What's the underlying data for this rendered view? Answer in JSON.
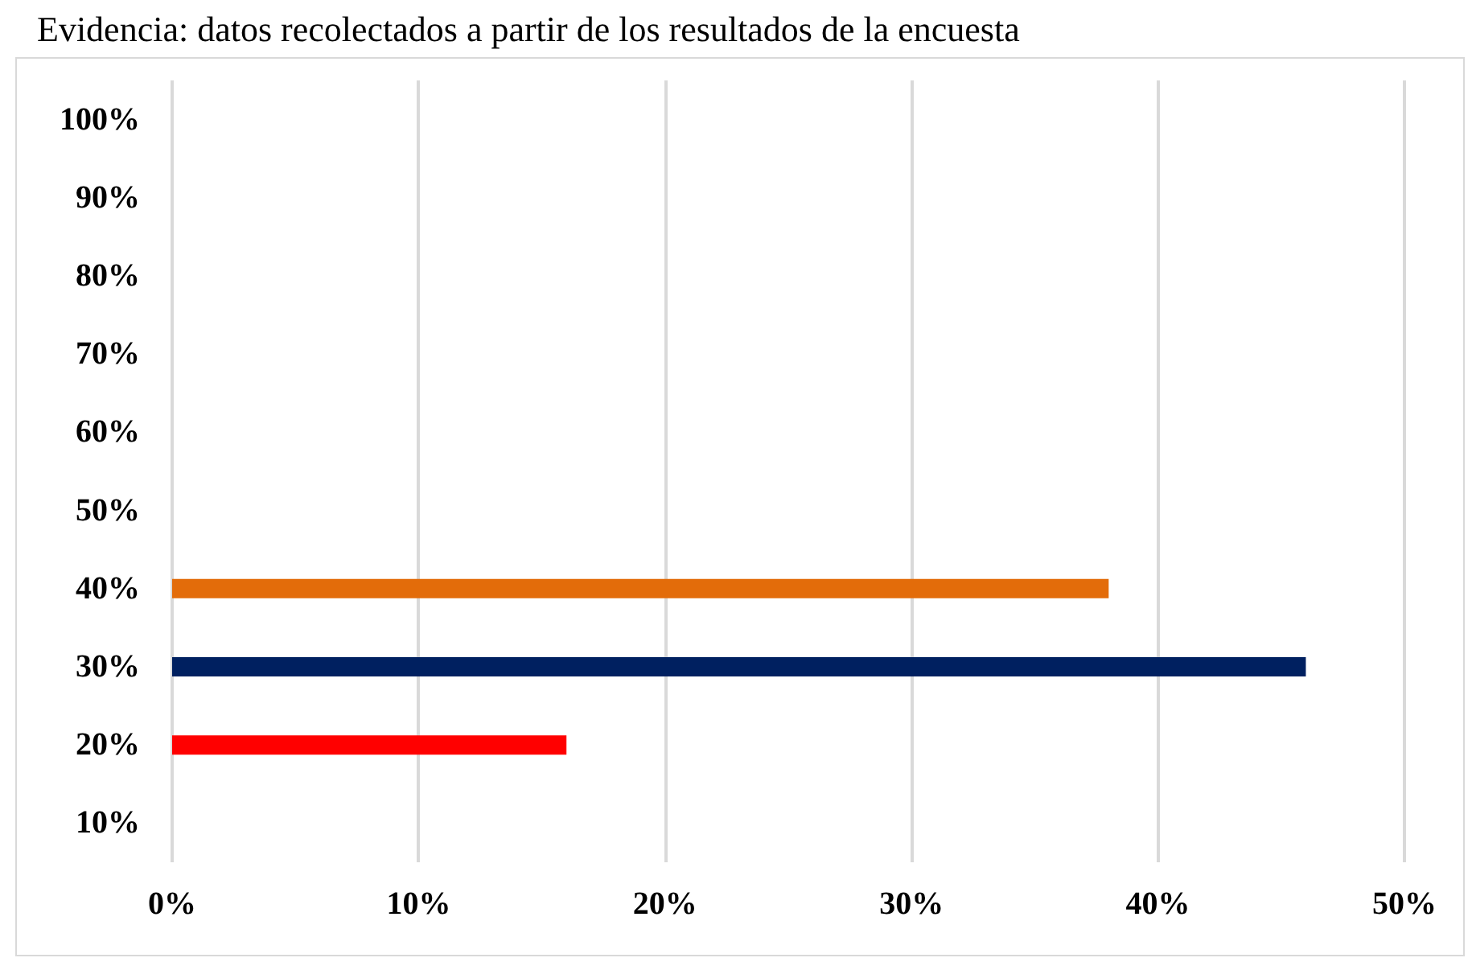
{
  "chart_data": {
    "type": "bar",
    "orientation": "horizontal",
    "title": "Evidencia: datos recolectados a partir de los resultados de la encuesta",
    "categories": [
      "100%",
      "90%",
      "80%",
      "70%",
      "60%",
      "50%",
      "40%",
      "30%",
      "20%",
      "10%"
    ],
    "values": [
      null,
      null,
      null,
      null,
      null,
      null,
      38,
      46,
      16,
      null
    ],
    "colors": [
      "#e36c0a",
      "#e36c0a",
      "#e36c0a",
      "#e36c0a",
      "#e36c0a",
      "#e36c0a",
      "#e36c0a",
      "#002060",
      "#ff0000",
      "#ff0000"
    ],
    "xlim": [
      0,
      50
    ],
    "xticks": [
      {
        "value": 0,
        "label": "0%"
      },
      {
        "value": 10,
        "label": "10%"
      },
      {
        "value": 20,
        "label": "20%"
      },
      {
        "value": 30,
        "label": "30%"
      },
      {
        "value": 40,
        "label": "40%"
      },
      {
        "value": 50,
        "label": "50%"
      }
    ],
    "grid": "x"
  }
}
